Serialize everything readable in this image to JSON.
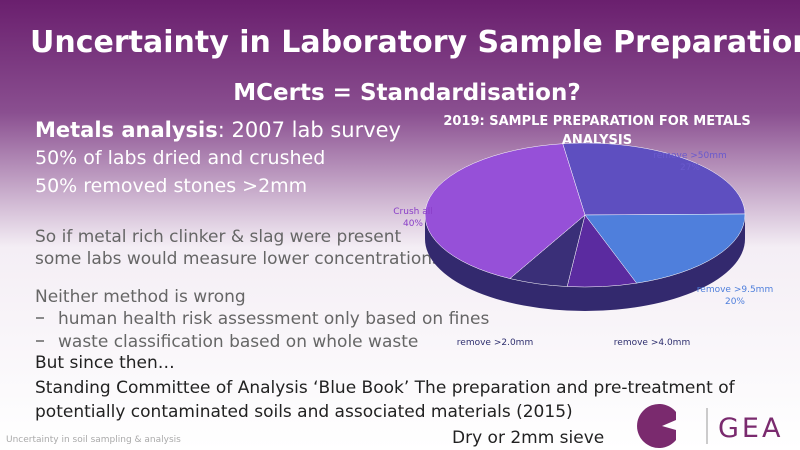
{
  "title": "Uncertainty in Laboratory Sample Preparation",
  "subtitle": "MCerts = Standardisation?",
  "body": {
    "lead_bold": "Metals analysis",
    "lead_rest": ": 2007 lab survey",
    "lines": [
      "50% of labs dried and crushed",
      "50% removed stones >2mm"
    ],
    "para1": [
      "So if metal rich clinker & slag were present",
      "some labs would measure lower concentrations"
    ],
    "para2": "Neither method is wrong",
    "bullets": [
      "human health risk assessment only based on fines",
      "waste classification based on whole waste"
    ],
    "since": "But since then…",
    "reference": [
      "Standing Committee of Analysis ‘Blue Book’  The preparation and pre-treatment of",
      "potentially contaminated soils and associated materials (2015)"
    ],
    "note": "Dry or 2mm sieve"
  },
  "footer": "Uncertainty in soil sampling & analysis",
  "logo": "GEA",
  "chart_data": {
    "type": "pie",
    "title": [
      "2019: SAMPLE PREPARATION FOR METALS",
      "ANALYSIS"
    ],
    "categories": [
      "remove >50mm",
      "remove >9.5mm",
      "remove >4.0mm",
      "remove >2.0mm",
      "Crush all"
    ],
    "values": [
      27,
      20,
      7,
      6,
      40
    ],
    "value_labels": [
      "27%",
      "20%",
      null,
      null,
      "40%"
    ],
    "colors": [
      "#5e4fc0",
      "#4f7fdc",
      "#5b2ba0",
      "#3a2f78",
      "#9650d8"
    ],
    "label_colors": [
      "#6a5acd",
      "#4f7fdc",
      "#2f2f6f",
      "#2f2f6f",
      "#8a3fc8"
    ]
  }
}
